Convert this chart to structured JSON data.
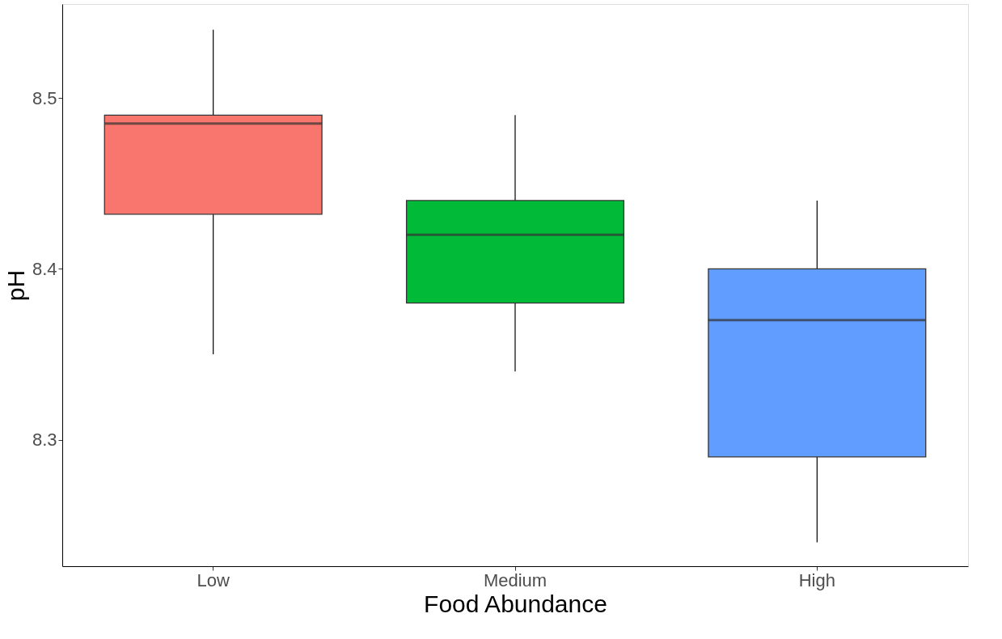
{
  "chart_data": {
    "type": "box",
    "xlabel": "Food Abundance",
    "ylabel": "pH",
    "categories": [
      "Low",
      "Medium",
      "High"
    ],
    "colors": [
      "#f8766d",
      "#00ba38",
      "#619cff"
    ],
    "boxes": [
      {
        "low": 8.35,
        "q1": 8.432,
        "median": 8.485,
        "q3": 8.49,
        "high": 8.54
      },
      {
        "low": 8.34,
        "q1": 8.38,
        "median": 8.42,
        "q3": 8.44,
        "high": 8.49
      },
      {
        "low": 8.24,
        "q1": 8.29,
        "median": 8.37,
        "q3": 8.4,
        "high": 8.44
      }
    ],
    "ylim": [
      8.226,
      8.555
    ],
    "yticks": [
      8.3,
      8.4,
      8.5
    ],
    "grid": false,
    "legend": false
  }
}
